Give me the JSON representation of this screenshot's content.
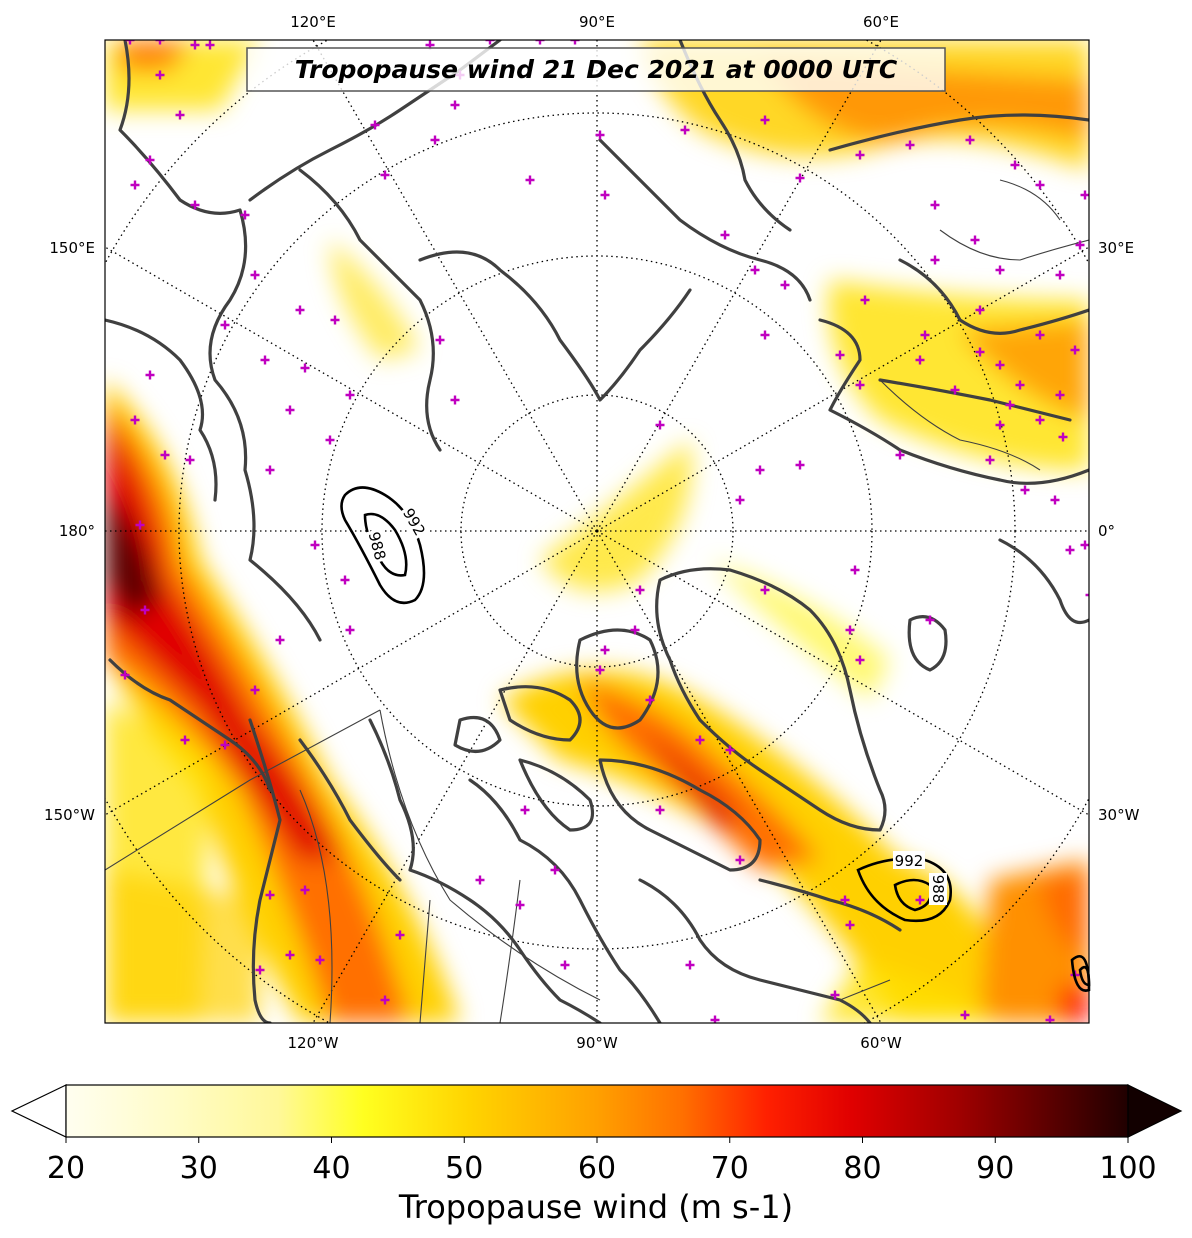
{
  "title": "Tropopause wind 21 Dec 2021 at 0000 UTC",
  "top_longitudes": [
    "120°E",
    "90°E",
    "60°E"
  ],
  "bottom_longitudes": [
    "120°W",
    "90°W",
    "60°W"
  ],
  "left_longitudes": [
    "150°E",
    "180°",
    "150°W"
  ],
  "right_longitudes": [
    "30°E",
    "0°",
    "30°W"
  ],
  "pressure_contours": [
    {
      "label": "992",
      "region": "left-low"
    },
    {
      "label": "988",
      "region": "left-low"
    },
    {
      "label": "992",
      "region": "right-low"
    },
    {
      "label": "988",
      "region": "right-low"
    }
  ],
  "colorbar": {
    "ticks": [
      "20",
      "30",
      "40",
      "50",
      "60",
      "70",
      "80",
      "90",
      "100"
    ],
    "min": 20,
    "max": 100,
    "label": "Tropopause wind (m s-1)",
    "colors": [
      "#fffef0",
      "#fffcc8",
      "#fff899",
      "#ffff20",
      "#ffd400",
      "#ffa000",
      "#ff7000",
      "#ff2000",
      "#e00000",
      "#a00000",
      "#600000",
      "#200000"
    ]
  },
  "colors": {
    "coastline": "#404040",
    "station_marker": "#c000c0",
    "grid": "#000000"
  }
}
